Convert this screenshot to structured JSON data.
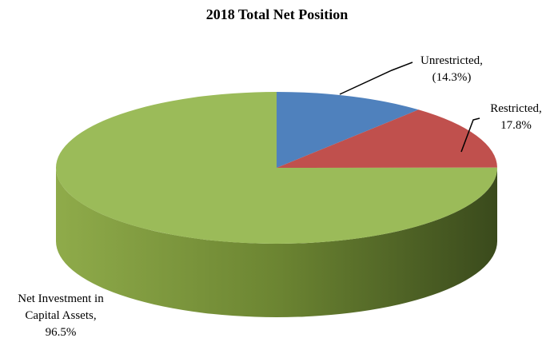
{
  "chart_data": {
    "type": "pie3d",
    "title": "2018 Total Net Position",
    "categories": [
      "Unrestricted,",
      "Restricted,",
      "Net Investment in Capital Assets,"
    ],
    "values": [
      -14.3,
      17.8,
      96.5
    ],
    "value_labels": [
      "(14.3%)",
      "17.8%",
      "96.5%"
    ],
    "colors": [
      "#4f81bd",
      "#c0504d",
      "#9bbb59"
    ]
  }
}
